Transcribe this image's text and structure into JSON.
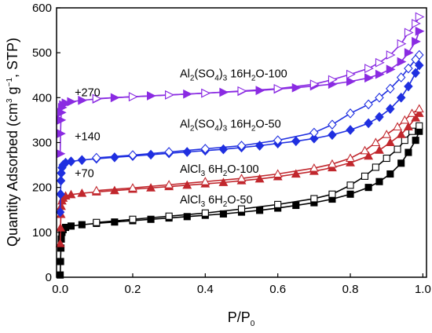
{
  "chart_data": {
    "type": "scatter",
    "title": "",
    "xlabel": {
      "main": "P/P",
      "sub": "0"
    },
    "ylabel": {
      "p1": "Quantity Adsorbed (cm",
      "sup1": "3",
      "p2": " g",
      "sup2": "−1",
      "p3": ", STP)"
    },
    "xlim": [
      -0.01,
      1.01
    ],
    "ylim": [
      0,
      600
    ],
    "xticks": [
      0.0,
      0.2,
      0.4,
      0.6,
      0.8,
      1.0
    ],
    "xtick_labels": [
      "0.0",
      "0.2",
      "0.4",
      "0.6",
      "0.8",
      "1.0"
    ],
    "yticks": [
      0,
      100,
      200,
      300,
      400,
      500,
      600
    ],
    "ytick_labels": [
      "0",
      "100",
      "200",
      "300",
      "400",
      "500",
      "600"
    ],
    "offset_labels": [
      {
        "text": "+270",
        "x": 0.04,
        "y": 403
      },
      {
        "text": "+140",
        "x": 0.04,
        "y": 305
      },
      {
        "text": "+70",
        "x": 0.04,
        "y": 223
      }
    ],
    "series_labels": [
      {
        "name": "al2so4-100",
        "x": 0.33,
        "y": 445,
        "parts": [
          [
            "Al",
            "n"
          ],
          [
            "2",
            "sub"
          ],
          [
            "(SO",
            "n"
          ],
          [
            "4",
            "sub"
          ],
          [
            ")",
            "n"
          ],
          [
            "3",
            "sub"
          ],
          [
            " 16H",
            "n"
          ],
          [
            "2",
            "sub"
          ],
          [
            "O-100",
            "n"
          ]
        ]
      },
      {
        "name": "al2so4-50",
        "x": 0.33,
        "y": 333,
        "parts": [
          [
            "Al",
            "n"
          ],
          [
            "2",
            "sub"
          ],
          [
            "(SO",
            "n"
          ],
          [
            "4",
            "sub"
          ],
          [
            ")",
            "n"
          ],
          [
            "3",
            "sub"
          ],
          [
            " 16H",
            "n"
          ],
          [
            "2",
            "sub"
          ],
          [
            "O-50",
            "n"
          ]
        ]
      },
      {
        "name": "alcl3-100",
        "x": 0.33,
        "y": 233,
        "parts": [
          [
            "AlCl",
            "n"
          ],
          [
            "3",
            "sub"
          ],
          [
            " 6H",
            "n"
          ],
          [
            "2",
            "sub"
          ],
          [
            "O-100",
            "n"
          ]
        ]
      },
      {
        "name": "alcl3-50",
        "x": 0.33,
        "y": 164,
        "parts": [
          [
            "AlCl",
            "n"
          ],
          [
            "3",
            "sub"
          ],
          [
            " 6H",
            "n"
          ],
          [
            "2",
            "sub"
          ],
          [
            "O-50",
            "n"
          ]
        ]
      }
    ],
    "series": [
      {
        "color": "#000000",
        "marker_ads": "square-filled",
        "marker_des": "square-open",
        "adsorption": [
          [
            0.0,
            5
          ],
          [
            0.001,
            35
          ],
          [
            0.002,
            65
          ],
          [
            0.003,
            85
          ],
          [
            0.005,
            100
          ],
          [
            0.008,
            106
          ],
          [
            0.015,
            111
          ],
          [
            0.03,
            114
          ],
          [
            0.06,
            117
          ],
          [
            0.1,
            120
          ],
          [
            0.15,
            123
          ],
          [
            0.2,
            126
          ],
          [
            0.25,
            129
          ],
          [
            0.3,
            132
          ],
          [
            0.35,
            135
          ],
          [
            0.4,
            138
          ],
          [
            0.45,
            141
          ],
          [
            0.5,
            145
          ],
          [
            0.55,
            149
          ],
          [
            0.6,
            154
          ],
          [
            0.65,
            160
          ],
          [
            0.7,
            166
          ],
          [
            0.75,
            174
          ],
          [
            0.8,
            185
          ],
          [
            0.85,
            200
          ],
          [
            0.88,
            213
          ],
          [
            0.91,
            230
          ],
          [
            0.94,
            254
          ],
          [
            0.96,
            278
          ],
          [
            0.98,
            305
          ],
          [
            0.99,
            325
          ]
        ],
        "desorption": [
          [
            0.99,
            337
          ],
          [
            0.97,
            325
          ],
          [
            0.95,
            305
          ],
          [
            0.93,
            285
          ],
          [
            0.9,
            265
          ],
          [
            0.87,
            245
          ],
          [
            0.84,
            225
          ],
          [
            0.8,
            205
          ],
          [
            0.75,
            185
          ],
          [
            0.7,
            175
          ],
          [
            0.6,
            162
          ],
          [
            0.5,
            152
          ],
          [
            0.4,
            143
          ],
          [
            0.3,
            136
          ],
          [
            0.2,
            129
          ],
          [
            0.1,
            122
          ]
        ]
      },
      {
        "color": "#c1272d",
        "marker_ads": "triangle-filled",
        "marker_des": "triangle-open",
        "adsorption": [
          [
            0.0,
            75
          ],
          [
            0.001,
            110
          ],
          [
            0.002,
            140
          ],
          [
            0.003,
            158
          ],
          [
            0.005,
            170
          ],
          [
            0.008,
            176
          ],
          [
            0.015,
            181
          ],
          [
            0.03,
            184
          ],
          [
            0.06,
            187
          ],
          [
            0.1,
            190
          ],
          [
            0.15,
            193
          ],
          [
            0.2,
            196
          ],
          [
            0.25,
            199
          ],
          [
            0.3,
            202
          ],
          [
            0.35,
            205
          ],
          [
            0.4,
            208
          ],
          [
            0.45,
            211
          ],
          [
            0.5,
            215
          ],
          [
            0.55,
            219
          ],
          [
            0.6,
            224
          ],
          [
            0.65,
            230
          ],
          [
            0.7,
            236
          ],
          [
            0.75,
            244
          ],
          [
            0.8,
            255
          ],
          [
            0.85,
            270
          ],
          [
            0.88,
            283
          ],
          [
            0.91,
            300
          ],
          [
            0.94,
            318
          ],
          [
            0.96,
            335
          ],
          [
            0.98,
            355
          ],
          [
            0.99,
            365
          ]
        ],
        "desorption": [
          [
            0.99,
            375
          ],
          [
            0.97,
            365
          ],
          [
            0.95,
            350
          ],
          [
            0.93,
            335
          ],
          [
            0.9,
            318
          ],
          [
            0.87,
            300
          ],
          [
            0.84,
            282
          ],
          [
            0.8,
            265
          ],
          [
            0.75,
            252
          ],
          [
            0.7,
            243
          ],
          [
            0.6,
            230
          ],
          [
            0.5,
            220
          ],
          [
            0.4,
            213
          ],
          [
            0.3,
            206
          ],
          [
            0.2,
            199
          ],
          [
            0.1,
            193
          ]
        ]
      },
      {
        "color": "#1f2fe0",
        "marker_ads": "diamond-filled",
        "marker_des": "diamond-open",
        "adsorption": [
          [
            0.0,
            145
          ],
          [
            0.001,
            185
          ],
          [
            0.002,
            215
          ],
          [
            0.003,
            232
          ],
          [
            0.005,
            244
          ],
          [
            0.008,
            250
          ],
          [
            0.015,
            255
          ],
          [
            0.03,
            258
          ],
          [
            0.06,
            261
          ],
          [
            0.1,
            264
          ],
          [
            0.15,
            267
          ],
          [
            0.2,
            270
          ],
          [
            0.25,
            273
          ],
          [
            0.3,
            276
          ],
          [
            0.35,
            279
          ],
          [
            0.4,
            282
          ],
          [
            0.45,
            285
          ],
          [
            0.5,
            289
          ],
          [
            0.55,
            293
          ],
          [
            0.6,
            298
          ],
          [
            0.65,
            303
          ],
          [
            0.7,
            309
          ],
          [
            0.75,
            317
          ],
          [
            0.8,
            328
          ],
          [
            0.85,
            343
          ],
          [
            0.88,
            357
          ],
          [
            0.91,
            375
          ],
          [
            0.94,
            400
          ],
          [
            0.96,
            425
          ],
          [
            0.98,
            455
          ],
          [
            0.99,
            472
          ]
        ],
        "desorption": [
          [
            0.99,
            495
          ],
          [
            0.98,
            485
          ],
          [
            0.96,
            465
          ],
          [
            0.94,
            445
          ],
          [
            0.91,
            420
          ],
          [
            0.88,
            400
          ],
          [
            0.85,
            385
          ],
          [
            0.8,
            365
          ],
          [
            0.75,
            340
          ],
          [
            0.7,
            322
          ],
          [
            0.6,
            305
          ],
          [
            0.5,
            293
          ],
          [
            0.4,
            286
          ],
          [
            0.3,
            279
          ],
          [
            0.2,
            272
          ],
          [
            0.1,
            266
          ]
        ]
      },
      {
        "color": "#8a2be2",
        "marker_ads": "triangle-right-filled",
        "marker_des": "triangle-right-open",
        "adsorption": [
          [
            0.0,
            275
          ],
          [
            0.001,
            320
          ],
          [
            0.002,
            350
          ],
          [
            0.003,
            367
          ],
          [
            0.005,
            378
          ],
          [
            0.008,
            384
          ],
          [
            0.015,
            388
          ],
          [
            0.03,
            391
          ],
          [
            0.06,
            394
          ],
          [
            0.1,
            397
          ],
          [
            0.15,
            400
          ],
          [
            0.2,
            402
          ],
          [
            0.25,
            404
          ],
          [
            0.3,
            406
          ],
          [
            0.35,
            408
          ],
          [
            0.4,
            410
          ],
          [
            0.45,
            412
          ],
          [
            0.5,
            414
          ],
          [
            0.55,
            416
          ],
          [
            0.6,
            419
          ],
          [
            0.65,
            422
          ],
          [
            0.7,
            426
          ],
          [
            0.75,
            430
          ],
          [
            0.8,
            436
          ],
          [
            0.85,
            444
          ],
          [
            0.88,
            452
          ],
          [
            0.91,
            463
          ],
          [
            0.94,
            480
          ],
          [
            0.96,
            500
          ],
          [
            0.98,
            525
          ],
          [
            0.99,
            548
          ]
        ],
        "desorption": [
          [
            0.99,
            580
          ],
          [
            0.98,
            565
          ],
          [
            0.96,
            545
          ],
          [
            0.94,
            520
          ],
          [
            0.91,
            495
          ],
          [
            0.88,
            478
          ],
          [
            0.85,
            465
          ],
          [
            0.8,
            452
          ],
          [
            0.75,
            440
          ],
          [
            0.7,
            430
          ],
          [
            0.6,
            420
          ],
          [
            0.5,
            415
          ],
          [
            0.4,
            410
          ],
          [
            0.3,
            406
          ],
          [
            0.2,
            402
          ],
          [
            0.1,
            398
          ]
        ]
      }
    ]
  }
}
